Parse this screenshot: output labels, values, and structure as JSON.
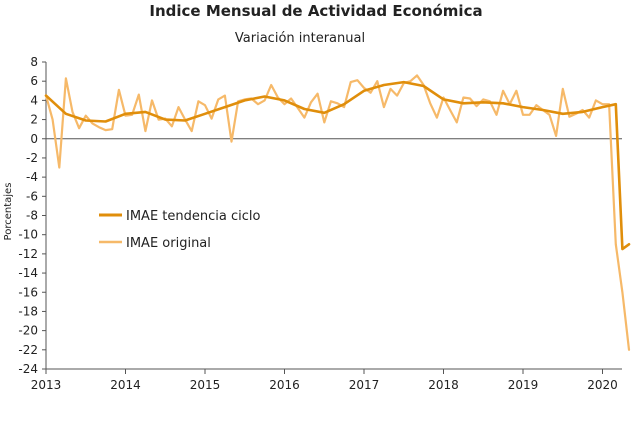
{
  "chart_data": {
    "type": "line",
    "title": "Indice Mensual de  Actividad Económica",
    "subtitle": "Variación interanual",
    "ylabel": "Porcentajes",
    "xlabel": "",
    "ylim": [
      -24,
      8
    ],
    "yticks": [
      8,
      6,
      4,
      2,
      0,
      -2,
      -4,
      -6,
      -8,
      -10,
      -12,
      -14,
      -16,
      -18,
      -20,
      -22,
      -24
    ],
    "x_tick_labels": [
      "2013",
      "2014",
      "2015",
      "2016",
      "2017",
      "2018",
      "2019",
      "2020"
    ],
    "xlim": [
      2013.0,
      2020.3333
    ],
    "grid": false,
    "legend_position": "middle-left",
    "series": [
      {
        "name": "IMAE tendencia ciclo",
        "color": "#E08E0B",
        "x": [
          2013.0,
          2013.25,
          2013.5,
          2013.75,
          2014.0,
          2014.25,
          2014.5,
          2014.75,
          2015.0,
          2015.25,
          2015.5,
          2015.75,
          2016.0,
          2016.25,
          2016.5,
          2016.75,
          2017.0,
          2017.25,
          2017.5,
          2017.75,
          2018.0,
          2018.25,
          2018.5,
          2018.75,
          2019.0,
          2019.25,
          2019.5,
          2019.75,
          2020.0,
          2020.1667,
          2020.25,
          2020.3333
        ],
        "y": [
          4.5,
          2.6,
          1.9,
          1.8,
          2.6,
          2.8,
          2.0,
          1.9,
          2.6,
          3.3,
          4.0,
          4.4,
          4.0,
          3.1,
          2.7,
          3.6,
          5.0,
          5.6,
          5.9,
          5.5,
          4.1,
          3.7,
          3.8,
          3.7,
          3.3,
          3.0,
          2.6,
          2.8,
          3.3,
          3.6,
          -11.5,
          -11.0
        ]
      },
      {
        "name": "IMAE original",
        "color": "#F6B969",
        "x": [
          2013.0,
          2013.0833,
          2013.1667,
          2013.25,
          2013.3333,
          2013.4167,
          2013.5,
          2013.5833,
          2013.6667,
          2013.75,
          2013.8333,
          2013.9167,
          2014.0,
          2014.0833,
          2014.1667,
          2014.25,
          2014.3333,
          2014.4167,
          2014.5,
          2014.5833,
          2014.6667,
          2014.75,
          2014.8333,
          2014.9167,
          2015.0,
          2015.0833,
          2015.1667,
          2015.25,
          2015.3333,
          2015.4167,
          2015.5,
          2015.5833,
          2015.6667,
          2015.75,
          2015.8333,
          2015.9167,
          2016.0,
          2016.0833,
          2016.1667,
          2016.25,
          2016.3333,
          2016.4167,
          2016.5,
          2016.5833,
          2016.6667,
          2016.75,
          2016.8333,
          2016.9167,
          2017.0,
          2017.0833,
          2017.1667,
          2017.25,
          2017.3333,
          2017.4167,
          2017.5,
          2017.5833,
          2017.6667,
          2017.75,
          2017.8333,
          2017.9167,
          2018.0,
          2018.0833,
          2018.1667,
          2018.25,
          2018.3333,
          2018.4167,
          2018.5,
          2018.5833,
          2018.6667,
          2018.75,
          2018.8333,
          2018.9167,
          2019.0,
          2019.0833,
          2019.1667,
          2019.25,
          2019.3333,
          2019.4167,
          2019.5,
          2019.5833,
          2019.6667,
          2019.75,
          2019.8333,
          2019.9167,
          2020.0,
          2020.0833,
          2020.1667,
          2020.25,
          2020.3333
        ],
        "y": [
          4.5,
          2.0,
          -3.0,
          6.3,
          2.8,
          1.1,
          2.4,
          1.6,
          1.2,
          0.9,
          1.0,
          5.1,
          2.4,
          2.5,
          4.6,
          0.8,
          4.0,
          2.0,
          2.1,
          1.3,
          3.3,
          2.0,
          0.8,
          3.9,
          3.5,
          2.1,
          4.1,
          4.5,
          -0.3,
          3.9,
          4.1,
          4.2,
          3.6,
          4.0,
          5.6,
          4.3,
          3.6,
          4.2,
          3.2,
          2.2,
          3.8,
          4.7,
          1.7,
          3.9,
          3.7,
          3.3,
          5.9,
          6.1,
          5.3,
          4.8,
          6.0,
          3.3,
          5.2,
          4.5,
          5.8,
          6.0,
          6.6,
          5.6,
          3.7,
          2.2,
          4.3,
          3.0,
          1.7,
          4.3,
          4.2,
          3.4,
          4.1,
          3.9,
          2.5,
          5.0,
          3.6,
          5.0,
          2.5,
          2.5,
          3.5,
          3.0,
          2.5,
          0.3,
          5.2,
          2.3,
          2.6,
          3.0,
          2.2,
          4.0,
          3.6,
          3.6,
          -11.0,
          -16.0,
          -22.0
        ]
      }
    ]
  }
}
